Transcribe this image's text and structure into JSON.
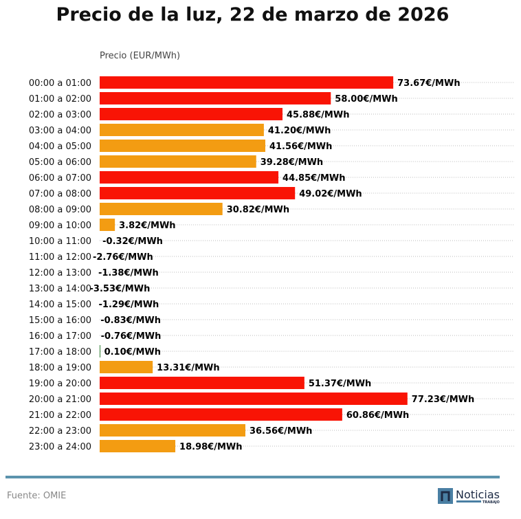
{
  "chart_data": {
    "type": "bar",
    "orientation": "horizontal",
    "title": "Precio de la luz, 22 de marzo de 2026",
    "xlabel": "Precio (EUR/MWh)",
    "xlim": [
      0,
      104
    ],
    "grid": "dotted horizontal",
    "label_suffix": "€/MWh",
    "categories": [
      "00:00 a 01:00",
      "01:00 a 02:00",
      "02:00 a 03:00",
      "03:00 a 04:00",
      "04:00 a 05:00",
      "05:00 a 06:00",
      "06:00 a 07:00",
      "07:00 a 08:00",
      "08:00 a 09:00",
      "09:00 a 10:00",
      "10:00 a 11:00",
      "11:00 a 12:00",
      "12:00 a 13:00",
      "13:00 a 14:00",
      "14:00 a 15:00",
      "15:00 a 16:00",
      "16:00 a 17:00",
      "17:00 a 18:00",
      "18:00 a 19:00",
      "19:00 a 20:00",
      "20:00 a 21:00",
      "21:00 a 22:00",
      "22:00 a 23:00",
      "23:00 a 24:00"
    ],
    "values": [
      73.67,
      58.0,
      45.88,
      41.2,
      41.56,
      39.28,
      44.85,
      49.02,
      30.82,
      3.82,
      -0.32,
      -2.76,
      -1.38,
      -3.53,
      -1.29,
      -0.83,
      -0.76,
      0.1,
      13.31,
      51.37,
      77.23,
      60.86,
      36.56,
      18.98
    ],
    "value_labels": [
      "73.67€/MWh",
      "58.00€/MWh",
      "45.88€/MWh",
      "41.20€/MWh",
      "41.56€/MWh",
      "39.28€/MWh",
      "44.85€/MWh",
      "49.02€/MWh",
      "30.82€/MWh",
      "3.82€/MWh",
      "-0.32€/MWh",
      "-2.76€/MWh",
      "-1.38€/MWh",
      "-3.53€/MWh",
      "-1.29€/MWh",
      "-0.83€/MWh",
      "-0.76€/MWh",
      "0.10€/MWh",
      "13.31€/MWh",
      "51.37€/MWh",
      "77.23€/MWh",
      "60.86€/MWh",
      "36.56€/MWh",
      "18.98€/MWh"
    ],
    "colors": [
      "#f91405",
      "#f91405",
      "#f91405",
      "#f39c12",
      "#f39c12",
      "#f39c12",
      "#f91405",
      "#f91405",
      "#f39c12",
      "#f39c12",
      "#2e7d32",
      "#2e7d32",
      "#2e7d32",
      "#2e7d32",
      "#2e7d32",
      "#2e7d32",
      "#2e7d32",
      "#2e7d32",
      "#f39c12",
      "#f91405",
      "#f91405",
      "#f91405",
      "#f39c12",
      "#f39c12"
    ]
  },
  "footer": {
    "source": "Fuente: OMIE",
    "logo_text": "Noticias",
    "logo_subtext": "TRABAJO",
    "line_color": "#5b93ad"
  }
}
